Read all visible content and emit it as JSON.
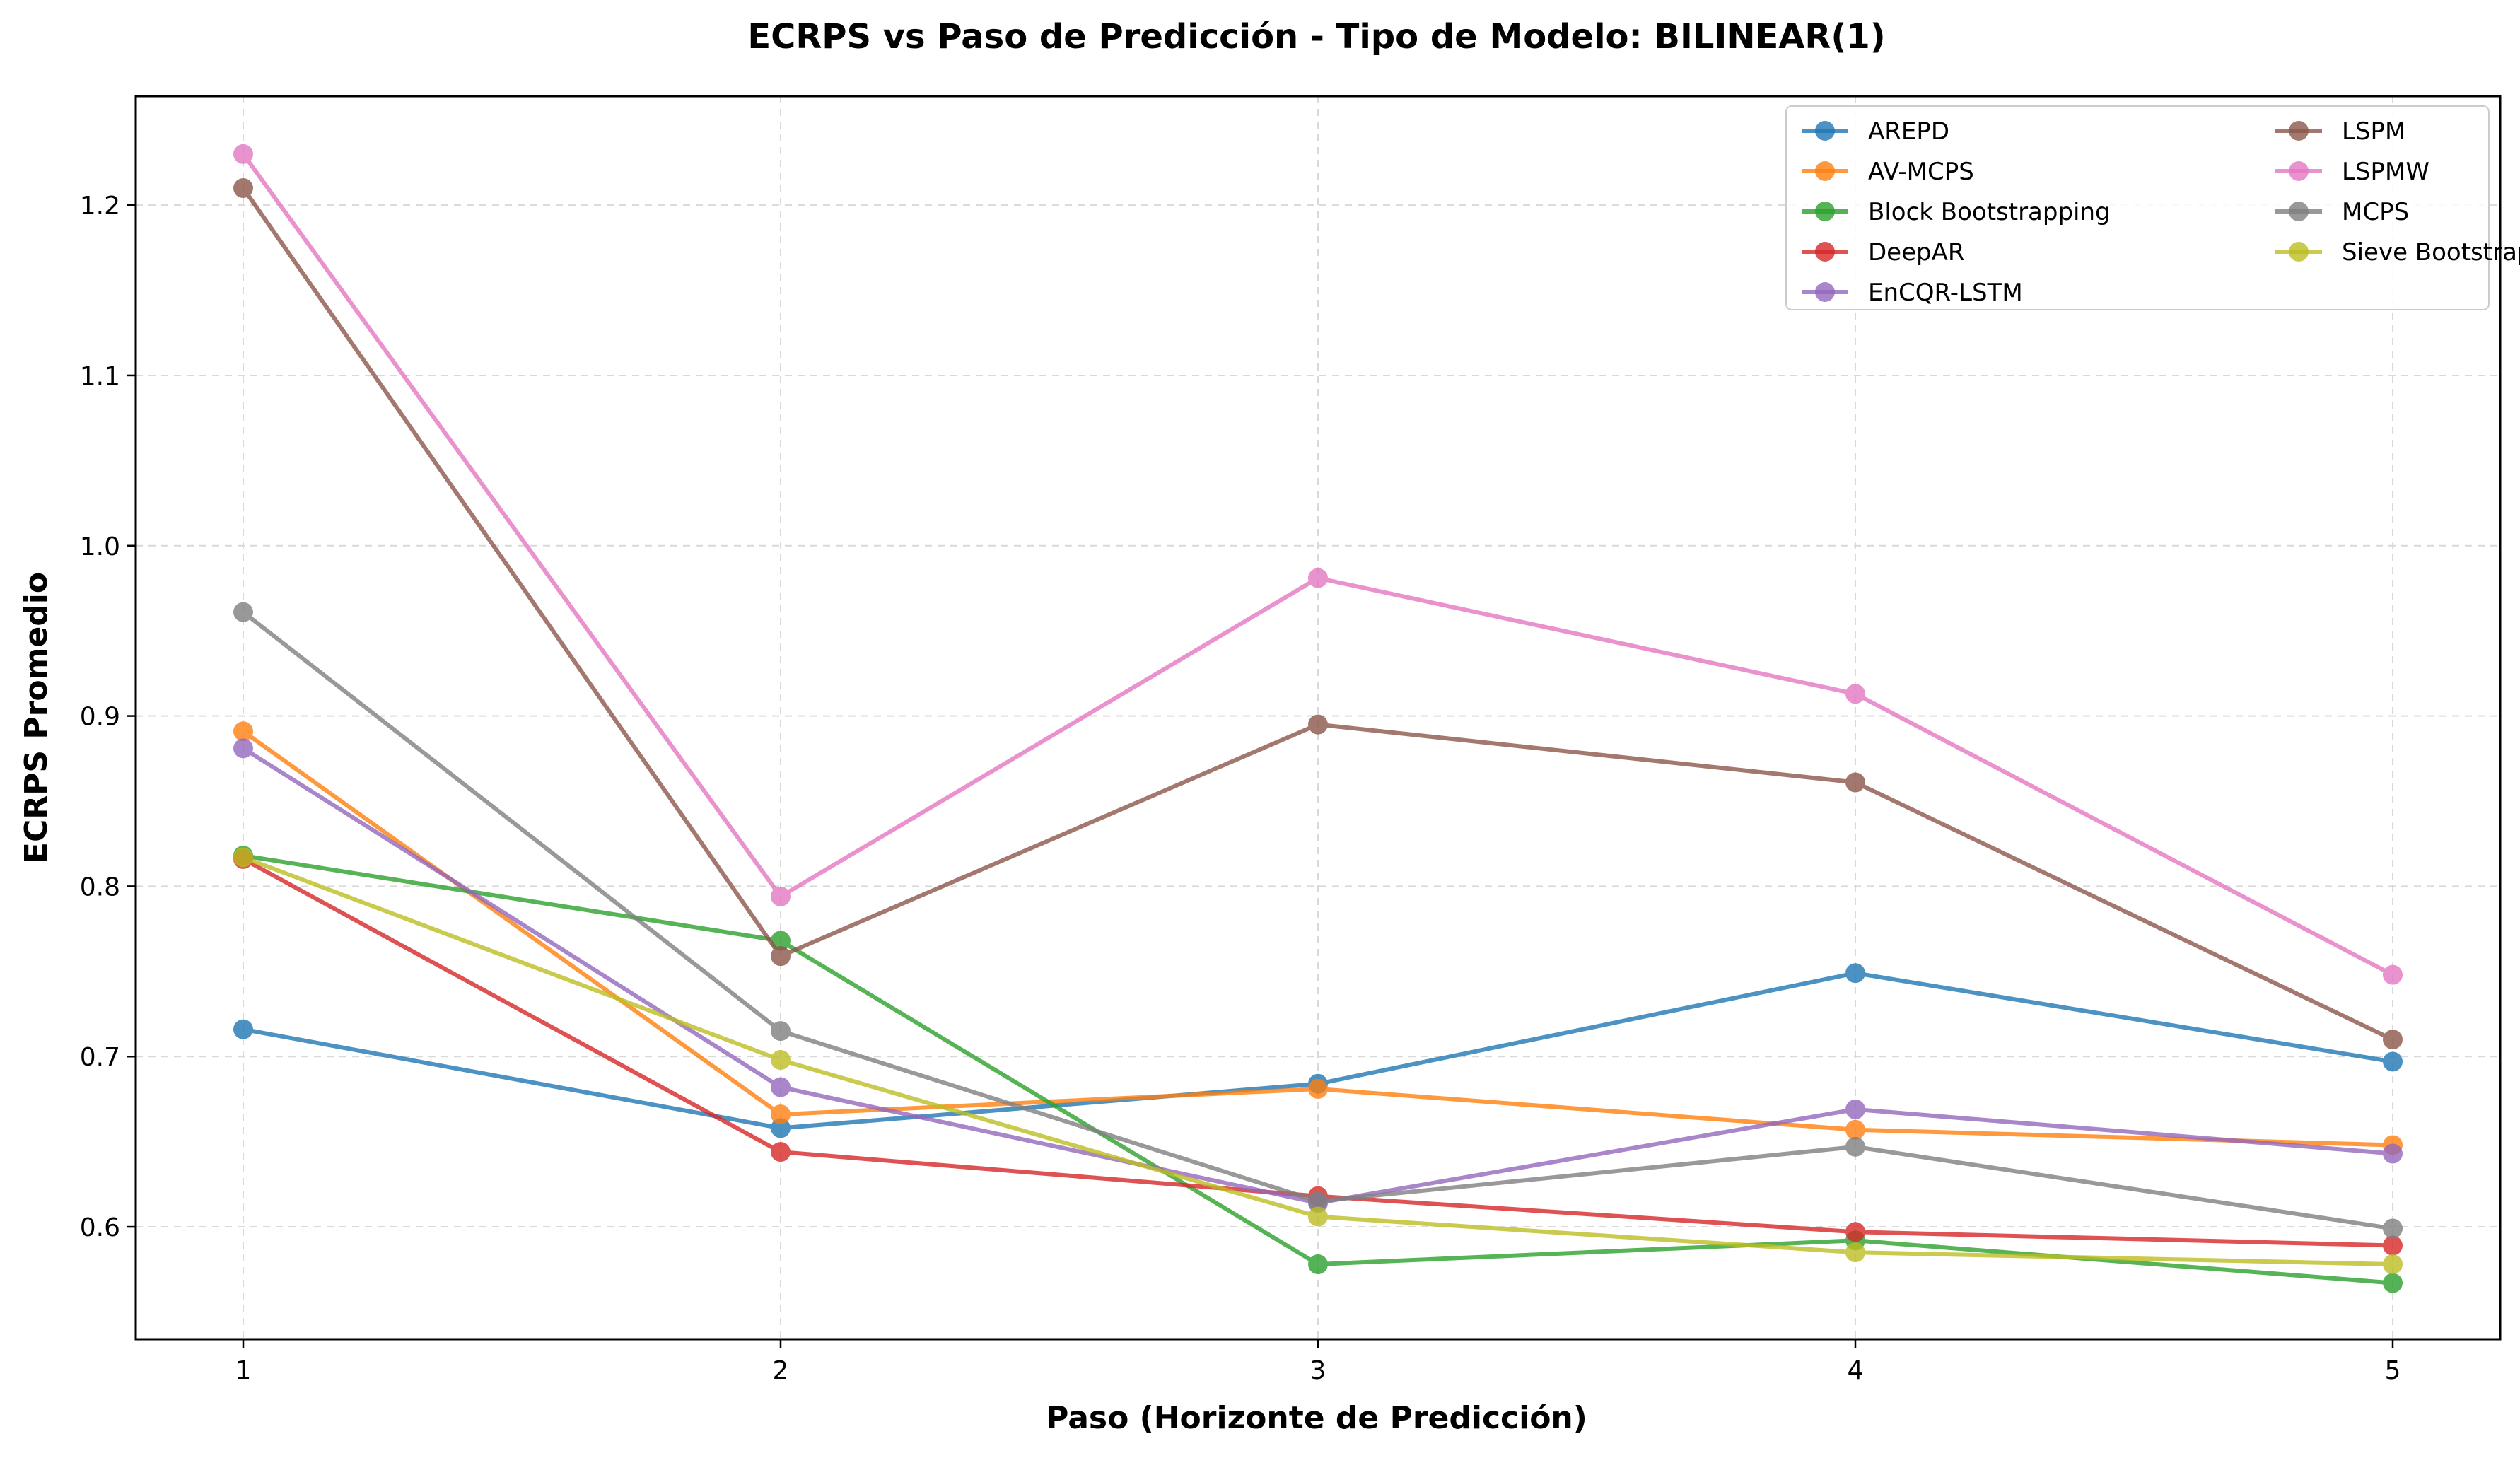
{
  "chart_data": {
    "type": "line",
    "title": "ECRPS vs Paso de Predicción - Tipo de Modelo: BILINEAR(1)",
    "xlabel": "Paso (Horizonte de Predicción)",
    "ylabel": "ECRPS Promedio",
    "x": [
      1,
      2,
      3,
      4,
      5
    ],
    "x_ticks": [
      "1",
      "2",
      "3",
      "4",
      "5"
    ],
    "y_ticks": [
      "0.6",
      "0.7",
      "0.8",
      "0.9",
      "1.0",
      "1.1",
      "1.2"
    ],
    "y_tick_values": [
      0.6,
      0.7,
      0.8,
      0.9,
      1.0,
      1.1,
      1.2
    ],
    "xlim": [
      0.8,
      5.2
    ],
    "ylim": [
      0.534,
      1.264
    ],
    "grid": true,
    "legend_position": "top-right",
    "series": [
      {
        "name": "AREPD",
        "color": "#1f77b4",
        "values": [
          0.716,
          0.658,
          0.684,
          0.749,
          0.697
        ]
      },
      {
        "name": "AV-MCPS",
        "color": "#ff7f0e",
        "values": [
          0.891,
          0.666,
          0.681,
          0.657,
          0.648
        ]
      },
      {
        "name": "Block Bootstrapping",
        "color": "#2ca02c",
        "values": [
          0.818,
          0.768,
          0.578,
          0.592,
          0.567
        ]
      },
      {
        "name": "DeepAR",
        "color": "#d62728",
        "values": [
          0.816,
          0.644,
          0.618,
          0.597,
          0.589
        ]
      },
      {
        "name": "EnCQR-LSTM",
        "color": "#9467bd",
        "values": [
          0.881,
          0.682,
          0.614,
          0.669,
          0.643
        ]
      },
      {
        "name": "LSPM",
        "color": "#8c564b",
        "values": [
          1.21,
          0.759,
          0.895,
          0.861,
          0.71
        ]
      },
      {
        "name": "LSPMW",
        "color": "#e377c2",
        "values": [
          1.23,
          0.794,
          0.981,
          0.913,
          0.748
        ]
      },
      {
        "name": "MCPS",
        "color": "#7f7f7f",
        "values": [
          0.961,
          0.715,
          0.615,
          0.647,
          0.599
        ]
      },
      {
        "name": "Sieve Bootstrap",
        "color": "#bcbd22",
        "values": [
          0.817,
          0.698,
          0.606,
          0.585,
          0.578
        ]
      }
    ]
  }
}
